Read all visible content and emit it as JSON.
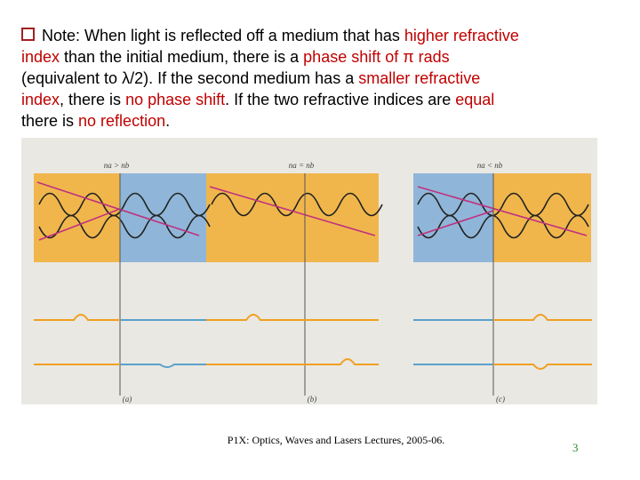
{
  "note": {
    "lines": [
      [
        {
          "text": "Note: When light is reflected off a medium that has ",
          "color": "#000000"
        },
        {
          "text": "higher refractive",
          "color": "#c00000"
        }
      ],
      [
        {
          "text": "index",
          "color": "#c00000"
        },
        {
          "text": " than the initial medium, there is a ",
          "color": "#000000"
        },
        {
          "text": "phase shift of π rads",
          "color": "#c00000"
        }
      ],
      [
        {
          "text": "(equivalent to λ/2). If the second medium has a ",
          "color": "#000000"
        },
        {
          "text": "smaller refractive",
          "color": "#c00000"
        }
      ],
      [
        {
          "text": "index",
          "color": "#c00000"
        },
        {
          "text": ", there is ",
          "color": "#000000"
        },
        {
          "text": "no phase shift",
          "color": "#c00000"
        },
        {
          "text": ". If the two refractive indices are ",
          "color": "#000000"
        },
        {
          "text": "equal",
          "color": "#c00000"
        }
      ],
      [
        {
          "text": "there is ",
          "color": "#000000"
        },
        {
          "text": "no reflection",
          "color": "#c00000"
        },
        {
          "text": ".",
          "color": "#000000"
        }
      ]
    ]
  },
  "figure": {
    "panels": [
      {
        "condition": "na > nb",
        "label": "(a)"
      },
      {
        "condition": "na = nb",
        "label": "(b)"
      },
      {
        "condition": "na < nb",
        "label": "(c)"
      }
    ]
  },
  "footer": {
    "text": "P1X: Optics, Waves and Lasers Lectures, 2005-06.",
    "page": "3"
  }
}
